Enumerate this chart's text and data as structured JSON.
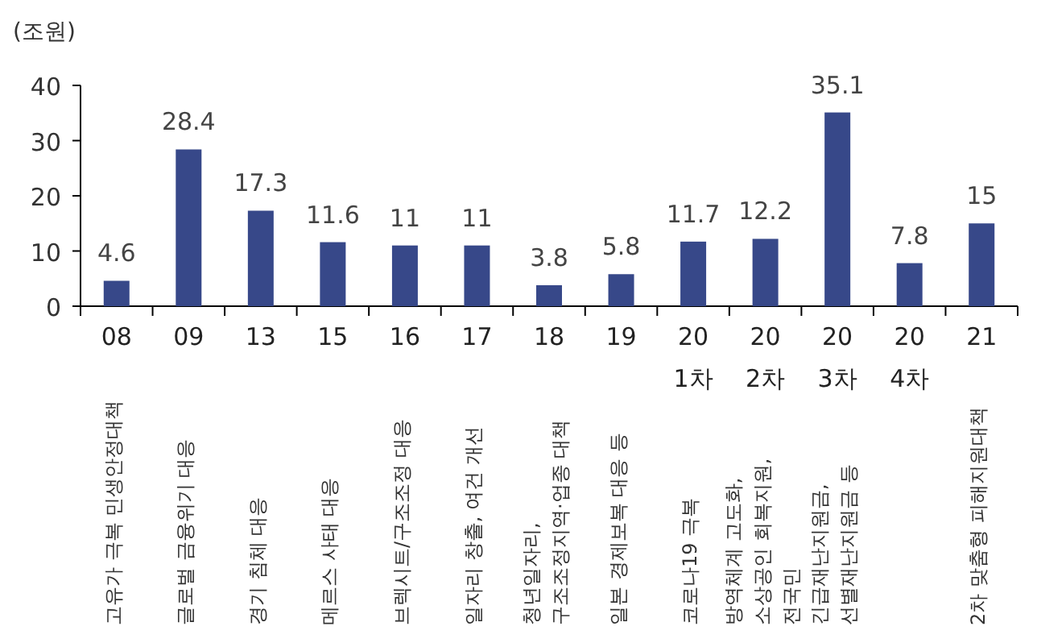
{
  "chart_data": {
    "type": "bar",
    "ylabel": "(조원)",
    "categories": [
      "08\n\n고유가 극복 민생안정대책",
      "09\n\n글로벌 금융위기 대응",
      "13\n\n경기 침체 대응",
      "15\n\n메르스 사태 대응",
      "16\n\n브렉시트/구조조정 대응",
      "17\n\n일자리 창출, 여건 개선",
      "18\n\n청년일자리,\n구조조정지역·업종 대책",
      "19\n\n일본 경제보복 대응 등",
      "20\n1차\n\n코로나19 극복",
      "20\n2차\n\n방역체계 고도화,\n소상공인 회복지원,\n전국민",
      "20\n3차\n\n긴급재난지원금,\n선별재난지원금 등",
      "20\n4차",
      "21\n\n2차 맞춤형 피해지원대책"
    ],
    "values": [
      4.6,
      28.4,
      17.3,
      11.6,
      11,
      11,
      3.8,
      5.8,
      11.7,
      12.2,
      35.1,
      7.8,
      15
    ],
    "color": "#374889",
    "ylim": [
      0,
      40
    ],
    "yticks": [
      0,
      10,
      20,
      30,
      40
    ],
    "data_labels": true
  }
}
